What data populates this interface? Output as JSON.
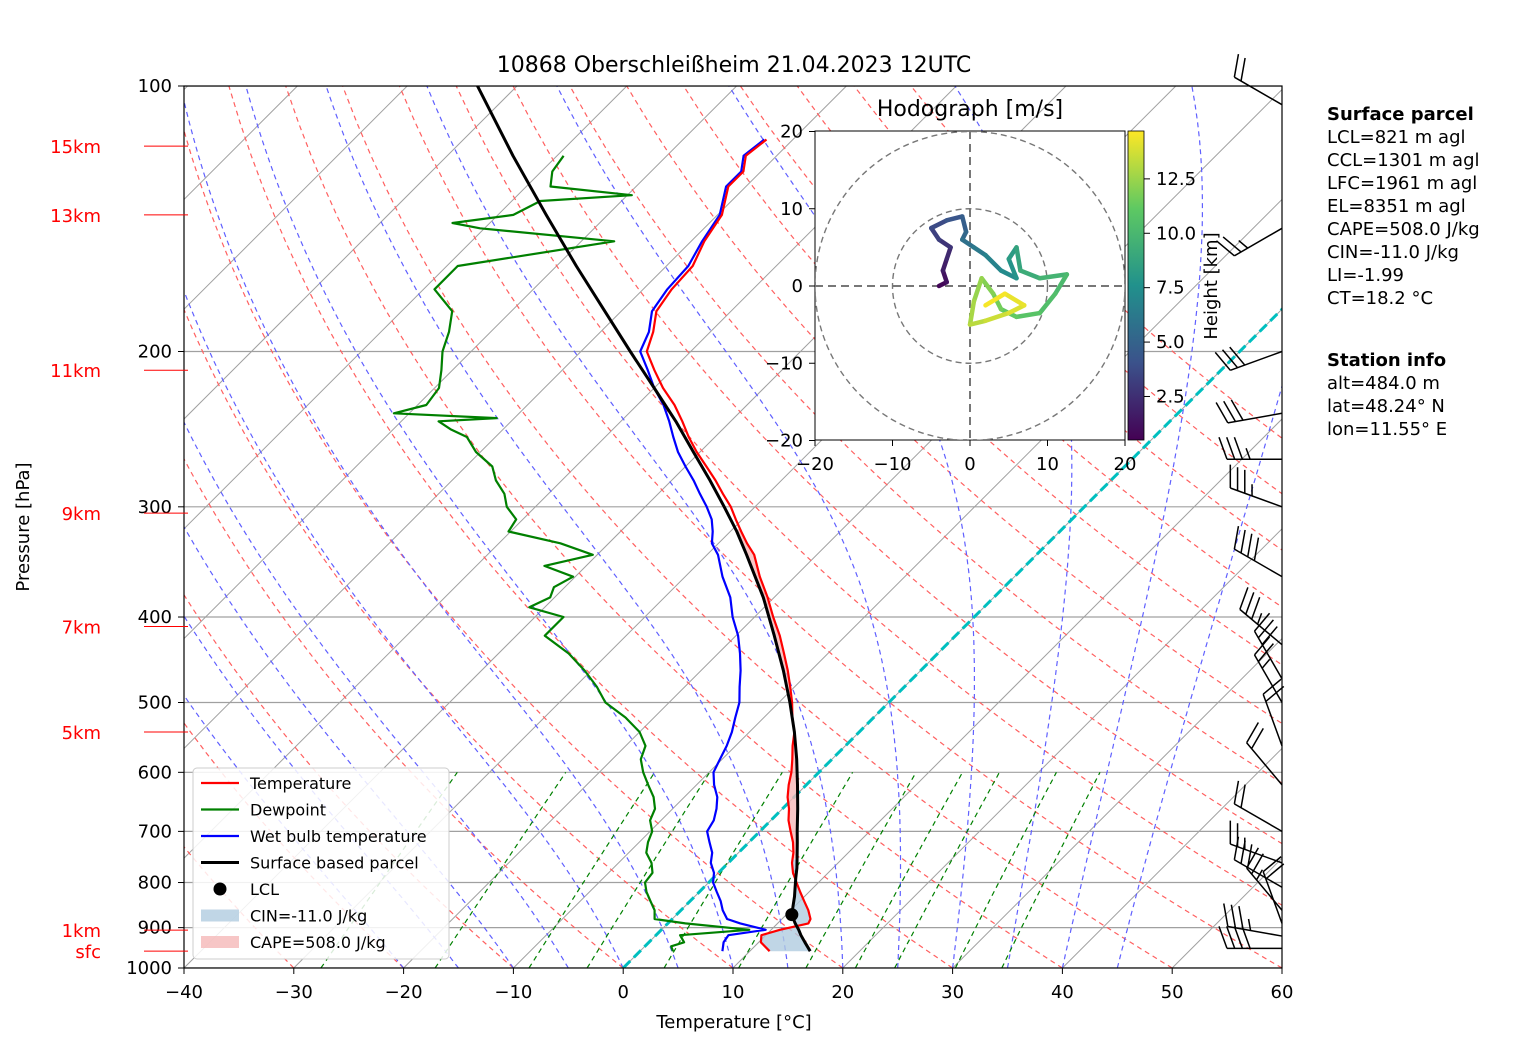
{
  "chart_data": {
    "type": "line",
    "title": "10868 Oberschleißheim 21.04.2023 12UTC",
    "xlabel": "Temperature [°C]",
    "ylabel": "Pressure [hPa]",
    "xlim": [
      -40,
      60
    ],
    "ylim": [
      1000,
      100
    ],
    "y_scale": "log",
    "skew": 45,
    "grid": true,
    "x_ticks": [
      "−40",
      "−30",
      "−20",
      "−10",
      "0",
      "10",
      "20",
      "30",
      "40",
      "50",
      "60"
    ],
    "x_tick_values": [
      -40,
      -30,
      -20,
      -10,
      0,
      10,
      20,
      30,
      40,
      50,
      60
    ],
    "y_ticks": [
      "100",
      "200",
      "300",
      "400",
      "500",
      "600",
      "700",
      "800",
      "900",
      "1000"
    ],
    "y_tick_values": [
      100,
      200,
      300,
      400,
      500,
      600,
      700,
      800,
      900,
      1000
    ],
    "height_labels": [
      {
        "label": "15km",
        "p": 117
      },
      {
        "label": "13km",
        "p": 140
      },
      {
        "label": "11km",
        "p": 210
      },
      {
        "label": "9km",
        "p": 305
      },
      {
        "label": "7km",
        "p": 410
      },
      {
        "label": "5km",
        "p": 540
      },
      {
        "label": "1km",
        "p": 906
      },
      {
        "label": "sfc",
        "p": 957
      }
    ],
    "series": [
      {
        "name": "Temperature",
        "color": "#ff0000",
        "p": [
          957,
          935,
          918,
          905,
          890,
          880,
          860,
          840,
          820,
          800,
          780,
          760,
          740,
          720,
          700,
          680,
          660,
          640,
          620,
          600,
          580,
          560,
          540,
          520,
          500,
          480,
          460,
          440,
          420,
          400,
          380,
          360,
          340,
          330,
          320,
          310,
          300,
          290,
          280,
          270,
          260,
          250,
          240,
          230,
          220,
          210,
          200,
          190,
          180,
          170,
          160,
          150,
          140,
          130,
          125,
          120,
          115
        ],
        "t": [
          11.8,
          10.2,
          9.6,
          10.8,
          12.8,
          12.6,
          11.6,
          10.4,
          9.2,
          8.0,
          6.8,
          5.8,
          5.0,
          4.0,
          2.8,
          1.6,
          0.6,
          -0.6,
          -1.6,
          -2.5,
          -3.6,
          -4.8,
          -5.9,
          -7.4,
          -8.8,
          -10.4,
          -12.1,
          -14.0,
          -16.0,
          -18.3,
          -20.6,
          -23.2,
          -25.7,
          -27.4,
          -29.0,
          -30.6,
          -32.2,
          -34.1,
          -36.0,
          -38.1,
          -40.3,
          -42.4,
          -44.4,
          -46.6,
          -49.2,
          -51.6,
          -54.0,
          -55.2,
          -56.8,
          -57.4,
          -57.6,
          -58.8,
          -59.6,
          -61.6,
          -61.6,
          -62.8,
          -62.4
        ]
      },
      {
        "name": "Dewpoint",
        "color": "#008000",
        "p": [
          957,
          945,
          935,
          918,
          905,
          890,
          880,
          860,
          840,
          820,
          800,
          780,
          760,
          740,
          720,
          700,
          680,
          660,
          640,
          620,
          600,
          580,
          560,
          540,
          520,
          500,
          480,
          460,
          440,
          420,
          400,
          390,
          380,
          370,
          360,
          350,
          340,
          330,
          320,
          310,
          300,
          290,
          280,
          270,
          260,
          250,
          245,
          240,
          238,
          235,
          230,
          220,
          210,
          200,
          190,
          180,
          170,
          160,
          150,
          145,
          143,
          140,
          135,
          133,
          130,
          125,
          120
        ],
        "t": [
          3.0,
          2.4,
          3.2,
          2.2,
          8.0,
          1.6,
          -1.6,
          -2.4,
          -3.6,
          -4.8,
          -5.8,
          -6.0,
          -7.0,
          -8.4,
          -9.2,
          -9.8,
          -11.0,
          -11.6,
          -12.8,
          -14.4,
          -16.0,
          -17.4,
          -18.2,
          -20.0,
          -22.6,
          -25.8,
          -28.0,
          -30.6,
          -33.6,
          -37.4,
          -37.4,
          -41.4,
          -40.4,
          -41.0,
          -40.2,
          -43.8,
          -40.4,
          -44.4,
          -50.2,
          -50.6,
          -52.6,
          -54.0,
          -56.0,
          -57.6,
          -60.4,
          -62.6,
          -64.8,
          -66.6,
          -61.6,
          -71.4,
          -69.2,
          -69.6,
          -71.0,
          -72.6,
          -73.8,
          -75.4,
          -79.0,
          -79.0,
          -67.0,
          -80.4,
          -83.4,
          -78.6,
          -77.4,
          -69.6,
          -77.8,
          -79.0,
          -79.4
        ]
      },
      {
        "name": "Wet bulb temperature",
        "color": "#0000ff",
        "p": [
          957,
          935,
          918,
          905,
          890,
          880,
          860,
          840,
          820,
          800,
          780,
          760,
          740,
          720,
          700,
          680,
          660,
          640,
          620,
          600,
          580,
          560,
          540,
          520,
          500,
          480,
          460,
          440,
          420,
          400,
          380,
          360,
          340,
          330,
          320,
          310,
          300,
          290,
          280,
          270,
          260,
          250,
          240,
          230,
          220,
          210,
          200,
          190,
          180,
          170,
          160,
          150,
          140,
          130,
          125,
          120,
          115
        ],
        "t": [
          7.5,
          6.8,
          6.6,
          9.5,
          6.6,
          5.0,
          3.8,
          2.8,
          1.6,
          0.4,
          -0.4,
          -1.6,
          -2.4,
          -3.6,
          -4.8,
          -5.2,
          -6.0,
          -7.0,
          -8.4,
          -9.6,
          -10.2,
          -10.8,
          -11.6,
          -12.6,
          -13.6,
          -15.0,
          -16.4,
          -18.0,
          -19.8,
          -22.0,
          -24.0,
          -26.6,
          -29.0,
          -30.6,
          -31.6,
          -32.8,
          -34.4,
          -36.2,
          -38.0,
          -40.0,
          -42.0,
          -43.8,
          -45.6,
          -47.6,
          -50.0,
          -52.2,
          -54.6,
          -55.6,
          -57.2,
          -57.8,
          -58.0,
          -59.0,
          -59.8,
          -61.8,
          -61.8,
          -63.0,
          -62.6
        ]
      },
      {
        "name": "Surface based parcel",
        "color": "#000000",
        "p": [
          957,
          935,
          918,
          905,
          890,
          870,
          850,
          830,
          810,
          790,
          770,
          750,
          720,
          700,
          660,
          620,
          580,
          540,
          500,
          460,
          420,
          380,
          340,
          320,
          300,
          280,
          260,
          240,
          220,
          200,
          180,
          160,
          140,
          120,
          100
        ],
        "t": [
          15.5,
          14.2,
          13.2,
          12.5,
          11.6,
          10.5,
          9.8,
          9.1,
          8.3,
          7.5,
          6.7,
          5.8,
          4.4,
          3.4,
          1.4,
          -0.8,
          -3.2,
          -5.9,
          -9.0,
          -12.5,
          -16.5,
          -21.0,
          -26.4,
          -29.4,
          -32.8,
          -36.5,
          -40.6,
          -45.0,
          -50.0,
          -55.5,
          -61.5,
          -68.2,
          -75.6,
          -84.0,
          -93.6
        ]
      }
    ],
    "lcl": {
      "label": "LCL",
      "t": 10.5,
      "p": 870
    },
    "legend": {
      "position": "bottom-left",
      "entries": [
        "Temperature",
        "Dewpoint",
        "Wet bulb temperature",
        "Surface based parcel",
        "LCL",
        "CIN=-11.0 J/kg",
        "CAPE=508.0 J/kg"
      ]
    },
    "hodograph": {
      "title": "Hodograph [m/s]",
      "xlim": [
        -20,
        20
      ],
      "ylim": [
        -20,
        20
      ],
      "ticks": [
        "−20",
        "−10",
        "0",
        "10",
        "20"
      ],
      "tick_values": [
        -20,
        -10,
        0,
        10,
        20
      ],
      "colorbar_label": "Height [km]",
      "colorbar_ticks": [
        "2.5",
        "5.0",
        "7.5",
        "10.0",
        "12.5"
      ],
      "colorbar_tick_values": [
        2.5,
        5.0,
        7.5,
        10.0,
        12.5
      ],
      "colorbar_range": [
        0.5,
        14.7
      ],
      "trace": [
        {
          "u": -4.0,
          "v": 0.0,
          "h": 0.5
        },
        {
          "u": -3.0,
          "v": 0.5,
          "h": 1.0
        },
        {
          "u": -3.5,
          "v": 2.0,
          "h": 1.5
        },
        {
          "u": -3.0,
          "v": 3.5,
          "h": 2.0
        },
        {
          "u": -2.5,
          "v": 5.0,
          "h": 2.5
        },
        {
          "u": -4.0,
          "v": 6.0,
          "h": 3.0
        },
        {
          "u": -5.0,
          "v": 7.5,
          "h": 3.5
        },
        {
          "u": -3.0,
          "v": 8.5,
          "h": 4.0
        },
        {
          "u": -1.0,
          "v": 9.0,
          "h": 4.5
        },
        {
          "u": -0.5,
          "v": 7.0,
          "h": 5.0
        },
        {
          "u": -1.0,
          "v": 6.0,
          "h": 5.5
        },
        {
          "u": 0.5,
          "v": 5.0,
          "h": 6.0
        },
        {
          "u": 2.0,
          "v": 4.0,
          "h": 6.5
        },
        {
          "u": 4.0,
          "v": 2.0,
          "h": 7.0
        },
        {
          "u": 6.0,
          "v": 1.0,
          "h": 7.5
        },
        {
          "u": 5.0,
          "v": 3.5,
          "h": 8.0
        },
        {
          "u": 6.0,
          "v": 5.0,
          "h": 8.5
        },
        {
          "u": 6.5,
          "v": 2.0,
          "h": 9.0
        },
        {
          "u": 9.0,
          "v": 1.0,
          "h": 9.5
        },
        {
          "u": 12.5,
          "v": 1.5,
          "h": 10.0
        },
        {
          "u": 11.0,
          "v": -1.0,
          "h": 10.3
        },
        {
          "u": 9.0,
          "v": -3.5,
          "h": 10.6
        },
        {
          "u": 6.0,
          "v": -4.0,
          "h": 11.0
        },
        {
          "u": 4.0,
          "v": -3.0,
          "h": 11.4
        },
        {
          "u": 3.0,
          "v": -1.0,
          "h": 11.8
        },
        {
          "u": 1.5,
          "v": 1.0,
          "h": 12.2
        },
        {
          "u": 0.5,
          "v": -2.0,
          "h": 12.6
        },
        {
          "u": 0.0,
          "v": -5.0,
          "h": 13.0
        },
        {
          "u": 2.0,
          "v": -4.5,
          "h": 13.4
        },
        {
          "u": 5.0,
          "v": -3.5,
          "h": 13.8
        },
        {
          "u": 7.0,
          "v": -2.5,
          "h": 14.1
        },
        {
          "u": 4.5,
          "v": -1.0,
          "h": 14.4
        },
        {
          "u": 2.0,
          "v": -2.5,
          "h": 14.7
        }
      ]
    },
    "wind_barbs": {
      "p": [
        105,
        145,
        200,
        235,
        265,
        300,
        360,
        430,
        470,
        500,
        560,
        620,
        700,
        760,
        810,
        860,
        890,
        920,
        950
      ],
      "speed_kt": [
        20,
        25,
        30,
        30,
        35,
        35,
        40,
        35,
        30,
        25,
        20,
        20,
        20,
        25,
        30,
        25,
        20,
        35,
        40
      ],
      "dir_deg": [
        300,
        240,
        250,
        260,
        270,
        290,
        300,
        310,
        330,
        330,
        340,
        320,
        300,
        290,
        300,
        320,
        340,
        280,
        270
      ]
    }
  },
  "surface_parcel": {
    "heading": "Surface parcel",
    "lines": [
      "LCL=821 m agl",
      "CCL=1301 m agl",
      "LFC=1961 m agl",
      "EL=8351 m agl",
      "CAPE=508.0 J/kg",
      "CIN=-11.0 J/kg",
      "LI=-1.99",
      "CT=18.2 °C"
    ]
  },
  "station_info": {
    "heading": "Station info",
    "lines": [
      "alt=484.0 m",
      "lat=48.24° N",
      "lon=11.55° E"
    ]
  },
  "colors": {
    "isotherm": "#a0a0a0",
    "dry_adiabat": "#ff6060",
    "moist_adiabat": "#6060ff",
    "mixing_ratio": "#008000",
    "zero_isotherm": "#00bfbf",
    "cin_fill": "#b0cce0",
    "cape_fill": "#f5b8b8",
    "height_label": "#ff0000"
  }
}
